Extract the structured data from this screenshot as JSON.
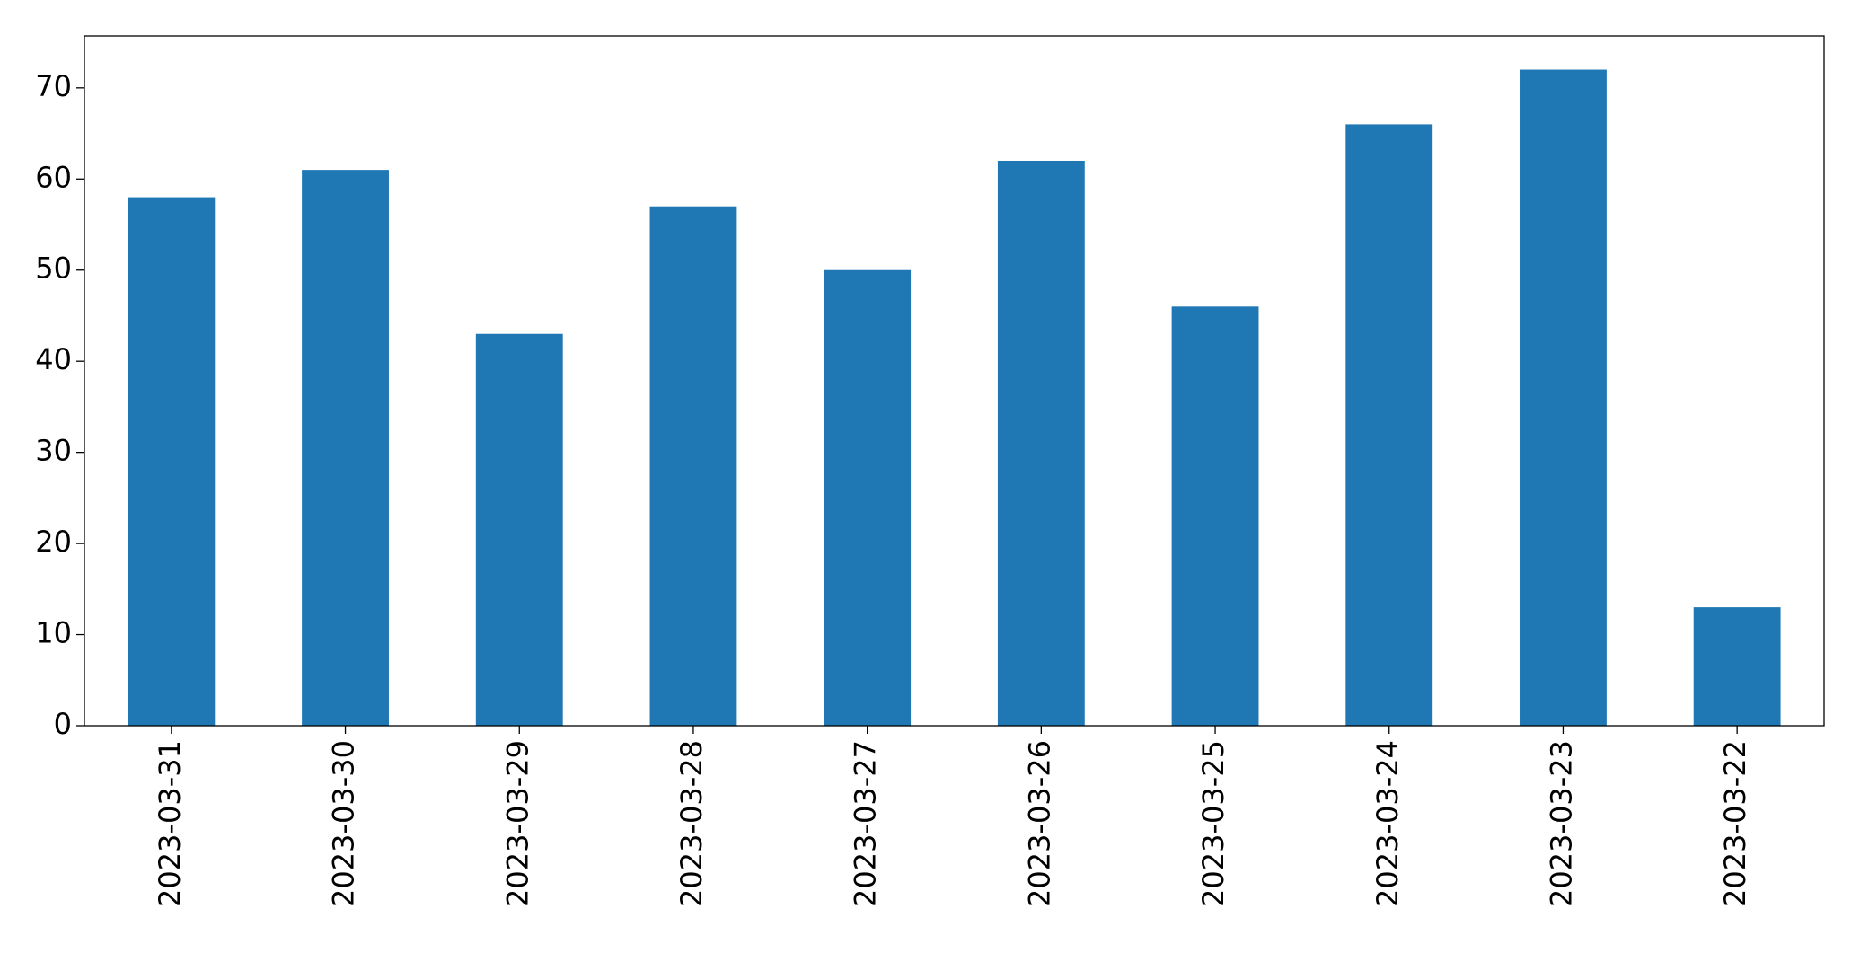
{
  "chart_data": {
    "type": "bar",
    "categories": [
      "2023-03-31",
      "2023-03-30",
      "2023-03-29",
      "2023-03-28",
      "2023-03-27",
      "2023-03-26",
      "2023-03-25",
      "2023-03-24",
      "2023-03-23",
      "2023-03-22"
    ],
    "values": [
      58,
      61,
      43,
      57,
      50,
      62,
      46,
      66,
      72,
      13
    ],
    "color": "#1f77b4",
    "ylim": [
      0,
      75.7
    ],
    "yticks": [
      0,
      10,
      20,
      30,
      40,
      50,
      60,
      70
    ],
    "grid": false
  }
}
